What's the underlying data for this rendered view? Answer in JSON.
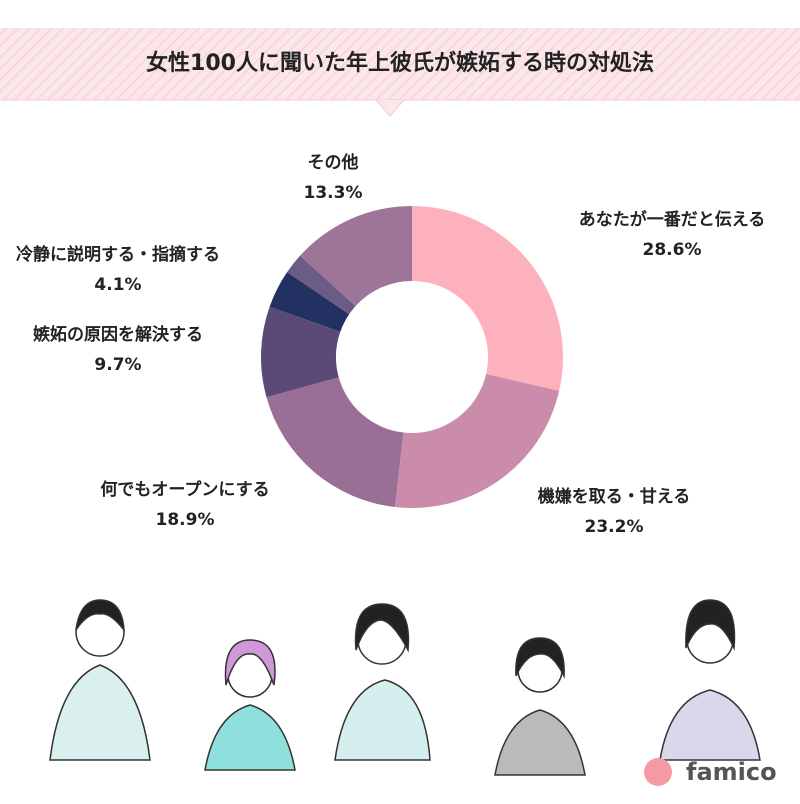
{
  "chart_data": {
    "type": "donut",
    "title": "女性100人に聞いた年上彼氏が嫉妬する時の対処法",
    "categories": [
      "あなたが一番だと伝える",
      "機嫌を取る・甘える",
      "何でもオープンにする",
      "嫉妬の原因を解決する",
      "冷静に説明する・指摘する",
      null,
      "その他"
    ],
    "values": [
      28.6,
      23.2,
      18.9,
      9.7,
      4.1,
      2.2,
      13.3
    ],
    "value_labels": [
      "28.6%",
      "23.2%",
      "18.9%",
      "9.7%",
      "4.1%",
      null,
      "13.3%"
    ],
    "colors": [
      "#fdb1bd",
      "#cb8cab",
      "#9a6f96",
      "#5b4a78",
      "#223062",
      "#6b5c86",
      "#9c7598"
    ]
  },
  "brand": "famico"
}
